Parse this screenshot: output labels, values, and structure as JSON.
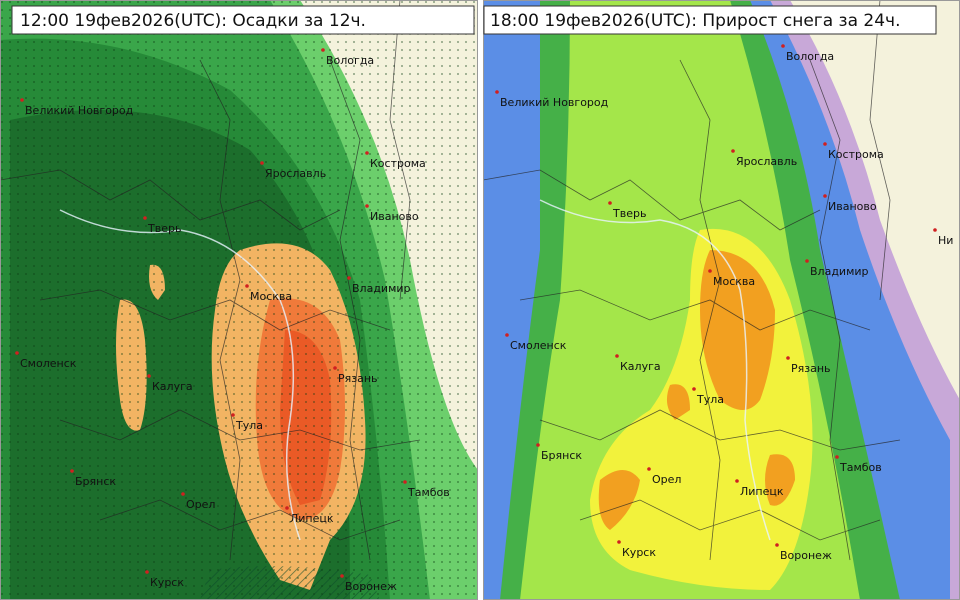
{
  "panels": [
    {
      "title": "12:00 19фев2026(UTC): Осадки за 12ч.",
      "cities": [
        "Великий Новгород",
        "Вологда",
        "Кострома",
        "Ярославль",
        "Иваново",
        "Тверь",
        "Москва",
        "Владимир",
        "Смоленск",
        "Калуга",
        "Рязань",
        "Тула",
        "Брянск",
        "Орел",
        "Тамбов",
        "Липецк",
        "Курск",
        "Воронеж"
      ]
    },
    {
      "title": "18:00 19фев2026(UTC): Прирост снега за 24ч.",
      "cities": [
        "Вологда",
        "Великий Новгород",
        "Кострома",
        "Ярославль",
        "Иваново",
        "Тверь",
        "Ни",
        "Владимир",
        "Москва",
        "Смоленск",
        "Калуга",
        "Рязань",
        "Тула",
        "Брянск",
        "Тамбов",
        "Орел",
        "Липецк",
        "Курск",
        "Воронеж"
      ]
    }
  ]
}
